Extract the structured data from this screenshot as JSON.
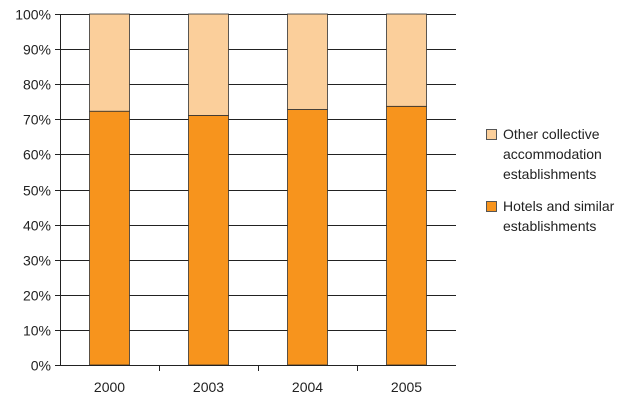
{
  "chart_data": {
    "type": "bar",
    "stacked": true,
    "categories": [
      "2000",
      "2003",
      "2004",
      "2005"
    ],
    "series": [
      {
        "name": "Hotels and similar establishments",
        "values": [
          72.3,
          71.1,
          72.8,
          73.7
        ],
        "color": "#F7941D"
      },
      {
        "name": "Other collective accommodation establishments",
        "values": [
          27.7,
          28.9,
          27.2,
          26.3
        ],
        "color": "#FBCF9B"
      }
    ],
    "ylim": [
      0,
      100
    ],
    "yticks": [
      "0%",
      "10%",
      "20%",
      "30%",
      "40%",
      "50%",
      "60%",
      "70%",
      "80%",
      "90%",
      "100%"
    ],
    "grid": true,
    "legend_position": "right",
    "title": "",
    "xlabel": "",
    "ylabel": ""
  }
}
